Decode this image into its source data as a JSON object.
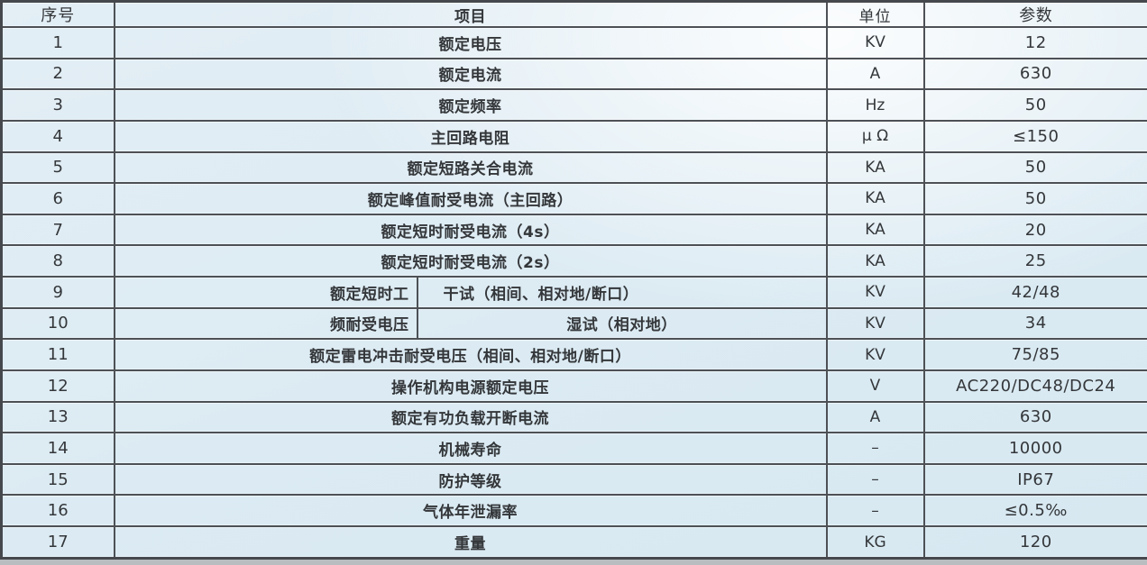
{
  "colors": {
    "cell_bg_blue": "#dcebf3",
    "cell_bg_highlight": "#f8fafc",
    "grid_border": "#4d5156",
    "text": "#34373a",
    "page_bg": "#b9bdc0"
  },
  "table": {
    "headers": {
      "no": "序号",
      "item": "项目",
      "unit": "单位",
      "param": "参数"
    },
    "rows": [
      {
        "no": "1",
        "item": "额定电压",
        "unit": "KV",
        "param": "12"
      },
      {
        "no": "2",
        "item": "额定电流",
        "unit": "A",
        "param": "630"
      },
      {
        "no": "3",
        "item": "额定频率",
        "unit": "Hz",
        "param": "50"
      },
      {
        "no": "4",
        "item": "主回路电阻",
        "unit": "μ Ω",
        "param": "≤150"
      },
      {
        "no": "5",
        "item": "额定短路关合电流",
        "unit": "KA",
        "param": "50"
      },
      {
        "no": "6",
        "item": "额定峰值耐受电流（主回路）",
        "unit": "KA",
        "param": "50"
      },
      {
        "no": "7",
        "item": "额定短时耐受电流（4s）",
        "unit": "KA",
        "param": "20"
      },
      {
        "no": "8",
        "item": "额定短时耐受电流（2s）",
        "unit": "KA",
        "param": "25"
      },
      {
        "no": "9",
        "item_left": "额定短时工",
        "item_right": "干试（相间、相对地/断口）",
        "unit": "KV",
        "param": "42/48"
      },
      {
        "no": "10",
        "item_left": "频耐受电压",
        "item_right": "湿试（相对地）",
        "unit": "KV",
        "param": "34"
      },
      {
        "no": "11",
        "item": "额定雷电冲击耐受电压（相间、相对地/断口）",
        "unit": "KV",
        "param": "75/85"
      },
      {
        "no": "12",
        "item": "操作机构电源额定电压",
        "unit": "V",
        "param": "AC220/DC48/DC24"
      },
      {
        "no": "13",
        "item": "额定有功负载开断电流",
        "unit": "A",
        "param": "630"
      },
      {
        "no": "14",
        "item": "机械寿命",
        "unit": "–",
        "param": "10000"
      },
      {
        "no": "15",
        "item": "防护等级",
        "unit": "–",
        "param": "IP67"
      },
      {
        "no": "16",
        "item": "气体年泄漏率",
        "unit": "–",
        "param": "≤0.5‰"
      },
      {
        "no": "17",
        "item": "重量",
        "unit": "KG",
        "param": "120"
      }
    ]
  }
}
